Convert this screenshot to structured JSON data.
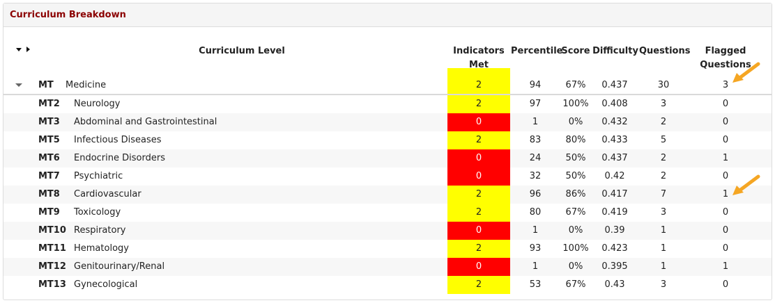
{
  "panel": {
    "title": "Curriculum Breakdown"
  },
  "headers": {
    "level": "Curriculum Level",
    "indicators_1": "Indicators",
    "indicators_2": "Met",
    "percentile": "Percentile",
    "score": "Score",
    "difficulty": "Difficulty",
    "questions": "Questions",
    "flagged_1": "Flagged",
    "flagged_2": "Questions"
  },
  "colors": {
    "met": "#ffff00",
    "not_met": "#ff0000",
    "title": "#8b0000",
    "annotation_arrow": "#f5a623"
  },
  "parent": {
    "code": "MT",
    "name": "Medicine",
    "indicators": "2",
    "status": "met",
    "percentile": "94",
    "score": "67%",
    "difficulty": "0.437",
    "questions": "30",
    "flagged": "3"
  },
  "rows": [
    {
      "code": "MT2",
      "name": "Neurology",
      "indicators": "2",
      "status": "met",
      "percentile": "97",
      "score": "100%",
      "difficulty": "0.408",
      "questions": "3",
      "flagged": "0"
    },
    {
      "code": "MT3",
      "name": "Abdominal and Gastrointestinal",
      "indicators": "0",
      "status": "not_met",
      "percentile": "1",
      "score": "0%",
      "difficulty": "0.432",
      "questions": "2",
      "flagged": "0"
    },
    {
      "code": "MT5",
      "name": "Infectious Diseases",
      "indicators": "2",
      "status": "met",
      "percentile": "83",
      "score": "80%",
      "difficulty": "0.433",
      "questions": "5",
      "flagged": "0"
    },
    {
      "code": "MT6",
      "name": "Endocrine Disorders",
      "indicators": "0",
      "status": "not_met",
      "percentile": "24",
      "score": "50%",
      "difficulty": "0.437",
      "questions": "2",
      "flagged": "1"
    },
    {
      "code": "MT7",
      "name": "Psychiatric",
      "indicators": "0",
      "status": "not_met",
      "percentile": "32",
      "score": "50%",
      "difficulty": "0.42",
      "questions": "2",
      "flagged": "0"
    },
    {
      "code": "MT8",
      "name": "Cardiovascular",
      "indicators": "2",
      "status": "met",
      "percentile": "96",
      "score": "86%",
      "difficulty": "0.417",
      "questions": "7",
      "flagged": "1"
    },
    {
      "code": "MT9",
      "name": "Toxicology",
      "indicators": "2",
      "status": "met",
      "percentile": "80",
      "score": "67%",
      "difficulty": "0.419",
      "questions": "3",
      "flagged": "0"
    },
    {
      "code": "MT10",
      "name": "Respiratory",
      "indicators": "0",
      "status": "not_met",
      "percentile": "1",
      "score": "0%",
      "difficulty": "0.39",
      "questions": "1",
      "flagged": "0"
    },
    {
      "code": "MT11",
      "name": "Hematology",
      "indicators": "2",
      "status": "met",
      "percentile": "93",
      "score": "100%",
      "difficulty": "0.423",
      "questions": "1",
      "flagged": "0"
    },
    {
      "code": "MT12",
      "name": "Genitourinary/Renal",
      "indicators": "0",
      "status": "not_met",
      "percentile": "1",
      "score": "0%",
      "difficulty": "0.395",
      "questions": "1",
      "flagged": "1"
    },
    {
      "code": "MT13",
      "name": "Gynecological",
      "indicators": "2",
      "status": "met",
      "percentile": "53",
      "score": "67%",
      "difficulty": "0.43",
      "questions": "3",
      "flagged": "0"
    }
  ],
  "icons": {
    "toggle": "expand-collapse-all-icon",
    "row_expand": "caret-down-icon",
    "annotation": "orange-arrow-icon"
  }
}
